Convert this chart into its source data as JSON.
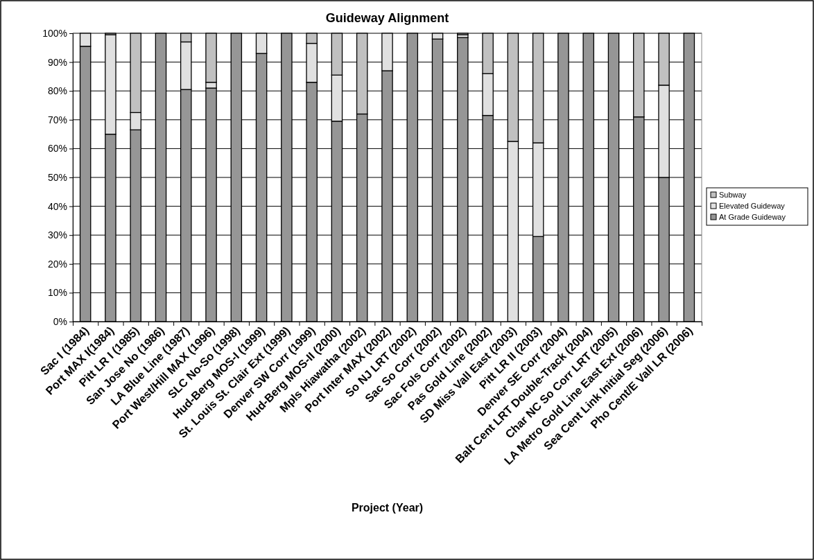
{
  "chart_data": {
    "type": "bar",
    "title": "Guideway Alignment",
    "xlabel": "Project (Year)",
    "stacked": true,
    "legend": "right",
    "grid": "y",
    "categories": [
      "Sac I (1984)",
      "Port MAX I(1984)",
      "Pitt LR I (1985)",
      "San Jose No (1986)",
      "LA Blue Line (1987)",
      "Port West/Hill MAX (1996)",
      "SLC No-So (1998)",
      "Hud-Berg MOS-I (1999)",
      "St. Louis St. Clair Ext (1999)",
      "Denver SW Corr (1999)",
      "Hud-Berg MOS-II (2000)",
      "Mpls Hiawatha (2002)",
      "Port Inter MAX (2002)",
      "So NJ LRT (2002)",
      "Sac So Corr (2002)",
      "Sac Fols Corr (2002)",
      "Pas Gold Line (2002)",
      "SD Miss Vall East (2003)",
      "Pitt LR II (2003)",
      "Denver SE Corr (2004)",
      "Balt Cent LRT Double-Track (2004)",
      "Char NC So Corr LRT (2005)",
      "LA Metro Gold Line East Ext (2006)",
      "Sea Cent Link Initial Seg (2006)",
      "Pho Cent/E Vall LR (2006)"
    ],
    "series": [
      {
        "name": "At Grade Guideway",
        "color": "#969696",
        "values": [
          95.5,
          65,
          66.5,
          100,
          80.5,
          81,
          100,
          93,
          100,
          83,
          69.5,
          72,
          87,
          100,
          98,
          98.5,
          71.5,
          0,
          29.5,
          100,
          100,
          100,
          71,
          50,
          100
        ]
      },
      {
        "name": "Elevated Guideway",
        "color": "#e0e0e0",
        "values": [
          4.5,
          34.5,
          6,
          0,
          16.5,
          2,
          0,
          7,
          0,
          13.5,
          16,
          0,
          13,
          0,
          2,
          1,
          14.5,
          62.5,
          32.5,
          0,
          0,
          0,
          0,
          32,
          0
        ]
      },
      {
        "name": "Subway",
        "color": "#c0c0c0",
        "values": [
          0,
          0.5,
          27.5,
          0,
          3,
          17,
          0,
          0,
          0,
          3.5,
          14.5,
          28,
          0,
          0,
          0,
          0.5,
          14,
          37.5,
          38,
          0,
          0,
          0,
          29,
          18,
          0
        ]
      }
    ],
    "ylim": [
      0,
      100
    ],
    "yticks": [
      {
        "value": 0,
        "label": "0%"
      },
      {
        "value": 10,
        "label": "10%"
      },
      {
        "value": 20,
        "label": "20%"
      },
      {
        "value": 30,
        "label": "30%"
      },
      {
        "value": 40,
        "label": "40%"
      },
      {
        "value": 50,
        "label": "50%"
      },
      {
        "value": 60,
        "label": "60%"
      },
      {
        "value": 70,
        "label": "70%"
      },
      {
        "value": 80,
        "label": "80%"
      },
      {
        "value": 90,
        "label": "90%"
      },
      {
        "value": 100,
        "label": "100%"
      }
    ]
  }
}
